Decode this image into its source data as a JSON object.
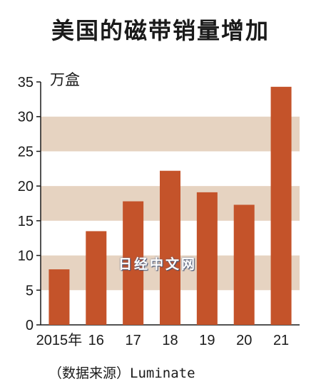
{
  "chart_data": {
    "type": "bar",
    "title": "美国的磁带销量增加",
    "ylabel": "万盒",
    "categories": [
      "2015年",
      "16",
      "17",
      "18",
      "19",
      "20",
      "21"
    ],
    "values": [
      8.0,
      13.5,
      17.8,
      22.2,
      19.1,
      17.3,
      34.3
    ],
    "ylim": [
      0,
      35
    ],
    "yticks": [
      0,
      5,
      10,
      15,
      20,
      25,
      30,
      35
    ],
    "shaded_bands": [
      [
        5,
        10
      ],
      [
        15,
        20
      ],
      [
        25,
        30
      ]
    ],
    "bar_color": "#c4532a",
    "band_color": "#e6d3c1",
    "source": "（数据来源）Luminate",
    "watermark": "日经中文网",
    "grid": false,
    "legend": "none"
  }
}
